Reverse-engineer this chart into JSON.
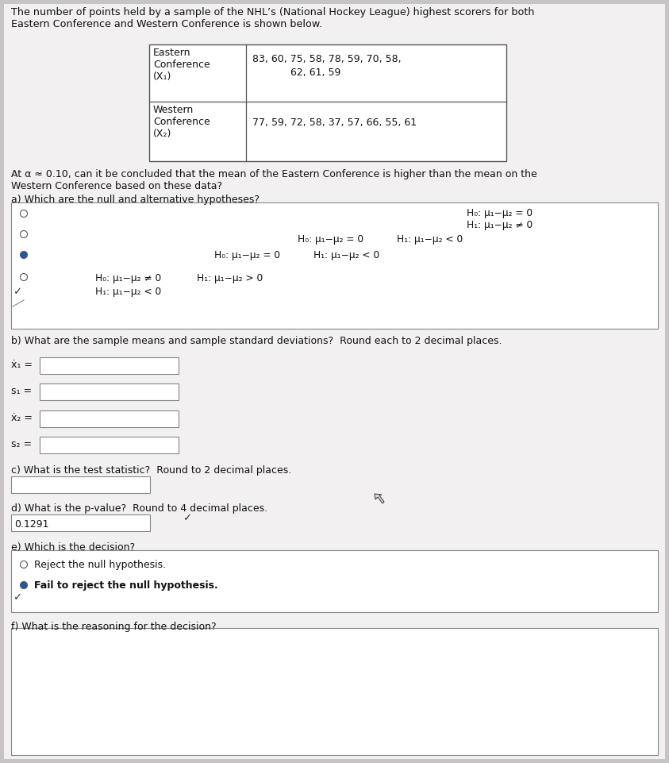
{
  "bg_color": "#c8c4c4",
  "paper_color": "#f2f0f0",
  "title_text": "The number of points held by a sample of the NHL’s (National Hockey League) highest scorers for both\nEastern Conference and Western Conference is shown below.",
  "row1_label": "Eastern\nConference\n(X₁)",
  "row1_values": "83, 60, 75, 58, 78, 59, 70, 58,\n              62, 61, 59",
  "row2_label": "Western\nConference\n(X₂)",
  "row2_values": "77, 59, 72, 58, 37, 57, 66, 55, 61",
  "alpha_text": "At α ≈ 0.10, can it be concluded that the mean of the Eastern Conference is higher than the mean on the\nWestern Conference based on these data?",
  "part_a_label": "a) Which are the null and alternative hypotheses?",
  "part_b_label": "b) What are the sample means and sample standard deviations?  Round each to 2 decimal places.",
  "xbar1_label": "ẋ₁ =",
  "s1_label": "s₁ =",
  "xbar2_label": "ẋ₂ =",
  "s2_label": "s₂ =",
  "part_c_label": "c) What is the test statistic?  Round to 2 decimal places.",
  "part_d_label": "d) What is the p-value?  Round to 4 decimal places.",
  "pvalue": "0.1291",
  "part_e_label": "e) Which is the decision?",
  "decision_option1": "Reject the null hypothesis.",
  "decision_option2": "Fail to reject the null hypothesis.",
  "part_f_label": "f) What is the reasoning for the decision?"
}
